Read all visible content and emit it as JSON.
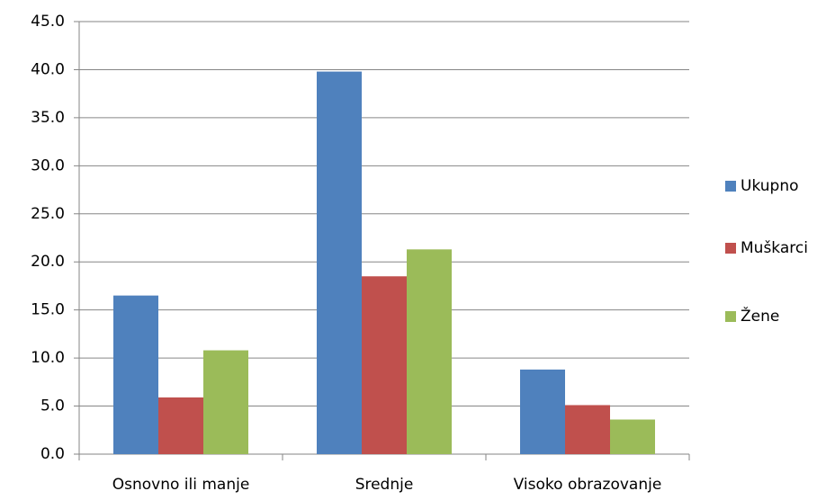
{
  "chart_data": {
    "type": "bar",
    "categories": [
      "Osnovno ili manje",
      "Srednje",
      "Visoko obrazovanje"
    ],
    "series": [
      {
        "name": "Ukupno",
        "color": "#4f81bd",
        "values": [
          16.5,
          39.8,
          8.8
        ]
      },
      {
        "name": "Muškarci",
        "color": "#c0504d",
        "values": [
          5.9,
          18.5,
          5.1
        ]
      },
      {
        "name": "Žene",
        "color": "#9bbb59",
        "values": [
          10.8,
          21.3,
          3.6
        ]
      }
    ],
    "ylim": [
      0,
      45
    ],
    "yticks": [
      {
        "value": 0,
        "label": "0.0"
      },
      {
        "value": 5,
        "label": "5.0"
      },
      {
        "value": 10,
        "label": "10.0"
      },
      {
        "value": 15,
        "label": "15.0"
      },
      {
        "value": 20,
        "label": "20.0"
      },
      {
        "value": 25,
        "label": "25.0"
      },
      {
        "value": 30,
        "label": "30.0"
      },
      {
        "value": 35,
        "label": "35.0"
      },
      {
        "value": 40,
        "label": "40.0"
      },
      {
        "value": 45,
        "label": "45.0"
      }
    ],
    "grid": true,
    "legend": "right"
  }
}
